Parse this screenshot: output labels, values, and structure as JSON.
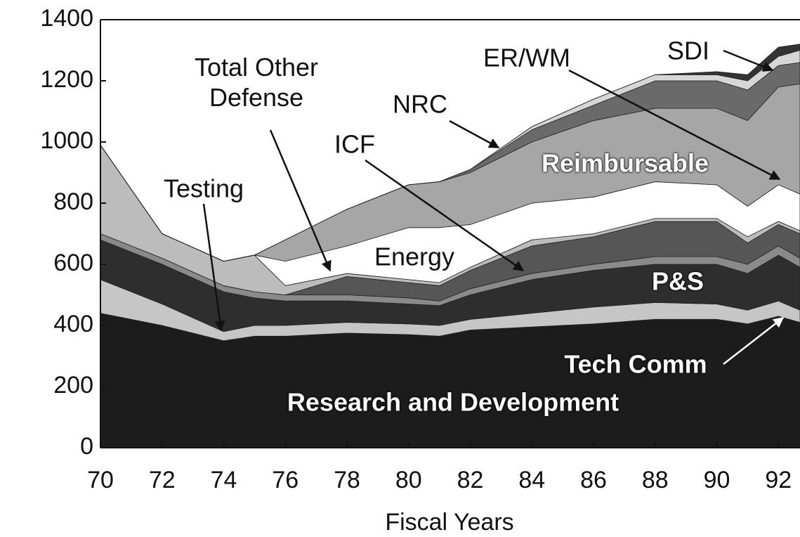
{
  "chart_data": {
    "type": "stacked_area",
    "x_label": "Fiscal Years",
    "x": [
      70,
      72,
      74,
      75,
      76,
      78,
      80,
      81,
      82,
      84,
      86,
      88,
      90,
      91,
      92,
      92.7
    ],
    "xlim": [
      70,
      92.7
    ],
    "xticks": [
      70,
      72,
      74,
      76,
      78,
      80,
      82,
      84,
      86,
      88,
      90,
      92
    ],
    "ylim": [
      0,
      1400
    ],
    "yticks": [
      0,
      200,
      400,
      600,
      800,
      1000,
      1200,
      1400
    ],
    "series": [
      {
        "name": "Research and Development",
        "color": "#1c1c1c",
        "values": [
          440,
          400,
          350,
          365,
          365,
          375,
          370,
          365,
          385,
          395,
          405,
          420,
          420,
          405,
          430,
          410
        ]
      },
      {
        "name": "Tech Comm",
        "color": "#c6c6c6",
        "values": [
          110,
          70,
          30,
          35,
          35,
          35,
          35,
          35,
          35,
          45,
          55,
          55,
          50,
          45,
          50,
          40
        ]
      },
      {
        "name": "P&S",
        "color": "#2e2e2e",
        "values": [
          130,
          130,
          130,
          90,
          80,
          70,
          65,
          65,
          80,
          110,
          120,
          125,
          130,
          120,
          150,
          140
        ]
      },
      {
        "name": "Testing",
        "color": "#8a8a8a",
        "values": [
          20,
          20,
          20,
          20,
          20,
          20,
          20,
          15,
          20,
          20,
          20,
          25,
          25,
          30,
          30,
          30
        ]
      },
      {
        "name": "ICF",
        "color": "#565656",
        "values": [
          0,
          0,
          0,
          0,
          0,
          60,
          50,
          50,
          60,
          90,
          90,
          115,
          115,
          70,
          70,
          80
        ]
      },
      {
        "name": "Total Other Defense",
        "color": "#bcbcbc",
        "values": [
          290,
          80,
          80,
          120,
          30,
          10,
          10,
          10,
          10,
          20,
          10,
          10,
          10,
          20,
          10,
          10
        ]
      },
      {
        "name": "Energy",
        "color": "#ffffff",
        "values": [
          0,
          0,
          0,
          0,
          80,
          90,
          170,
          180,
          140,
          120,
          120,
          120,
          110,
          100,
          120,
          120
        ]
      },
      {
        "name": "Reimbursable",
        "color": "#a6a6a6",
        "values": [
          0,
          0,
          0,
          0,
          70,
          120,
          140,
          150,
          170,
          200,
          250,
          240,
          250,
          280,
          320,
          360
        ]
      },
      {
        "name": "NRC",
        "color": "#6a6a6a",
        "values": [
          0,
          0,
          0,
          0,
          0,
          0,
          0,
          0,
          10,
          40,
          50,
          90,
          90,
          100,
          70,
          70
        ]
      },
      {
        "name": "ER/WM",
        "color": "#d6d6d6",
        "values": [
          0,
          0,
          0,
          0,
          0,
          0,
          0,
          0,
          0,
          10,
          20,
          20,
          20,
          30,
          30,
          40
        ]
      },
      {
        "name": "SDI",
        "color": "#333333",
        "values": [
          0,
          0,
          0,
          0,
          0,
          0,
          0,
          0,
          0,
          0,
          0,
          0,
          10,
          20,
          30,
          20
        ]
      }
    ]
  }
}
